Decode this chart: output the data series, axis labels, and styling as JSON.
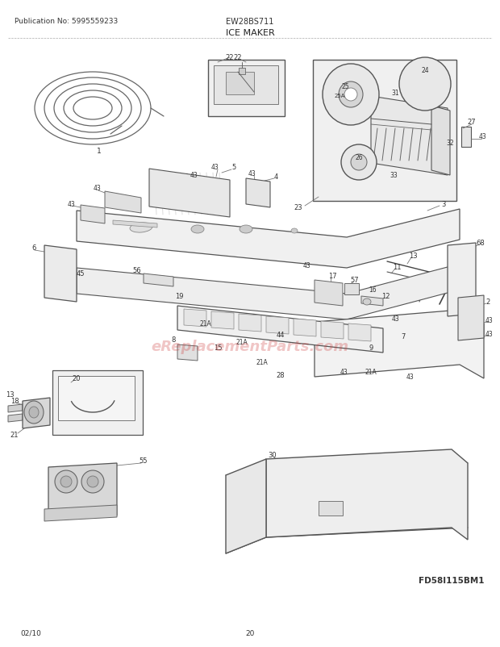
{
  "title": "ICE MAKER",
  "model": "EW28BS711",
  "publication": "Publication No: 5995559233",
  "diagram_id": "FD58I115BM1",
  "date": "02/10",
  "page": "20",
  "bg_color": "#ffffff",
  "line_color": "#555555",
  "text_color": "#333333",
  "watermark": "eReplacementParts.com",
  "watermark_color": "#cc3333",
  "watermark_alpha": 0.28,
  "figsize": [
    6.2,
    8.03
  ],
  "dpi": 100
}
